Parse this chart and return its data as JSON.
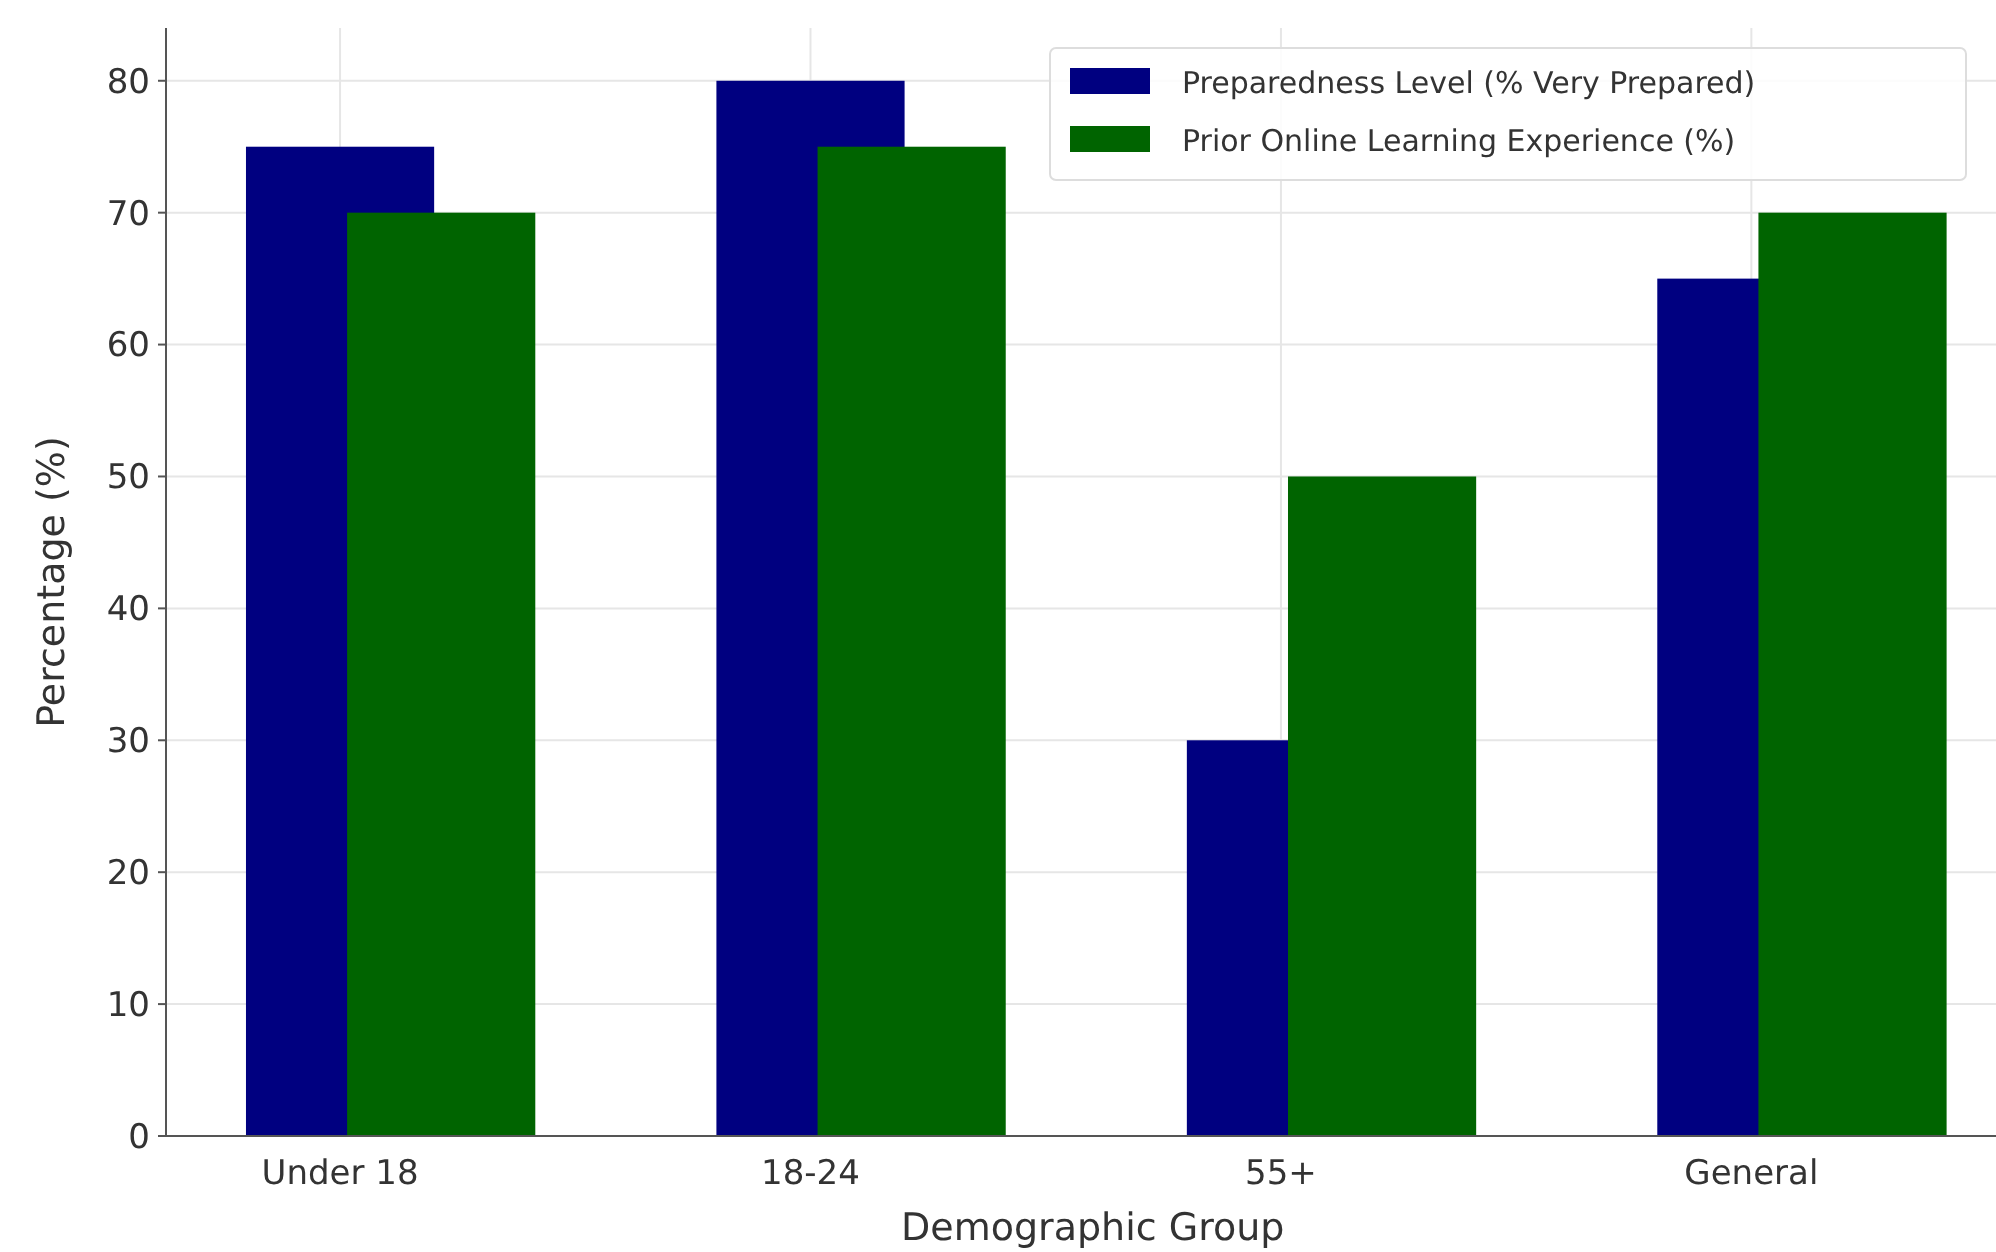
{
  "chart_data": {
    "type": "bar",
    "xlabel": "Demographic Group",
    "ylabel": "Percentage (%)",
    "categories": [
      "Under 18",
      "18-24",
      "55+",
      "General"
    ],
    "series": [
      {
        "name": "Preparedness Level (% Very Prepared)",
        "color": "#000080",
        "values": [
          75,
          80,
          30,
          65
        ]
      },
      {
        "name": "Prior Online Learning Experience (%)",
        "color": "#006400",
        "values": [
          70,
          75,
          50,
          70
        ]
      }
    ],
    "ylim": [
      0,
      84
    ],
    "yticks": [
      0,
      10,
      20,
      30,
      40,
      50,
      60,
      70,
      80
    ],
    "grid": true,
    "legend": "top right"
  }
}
